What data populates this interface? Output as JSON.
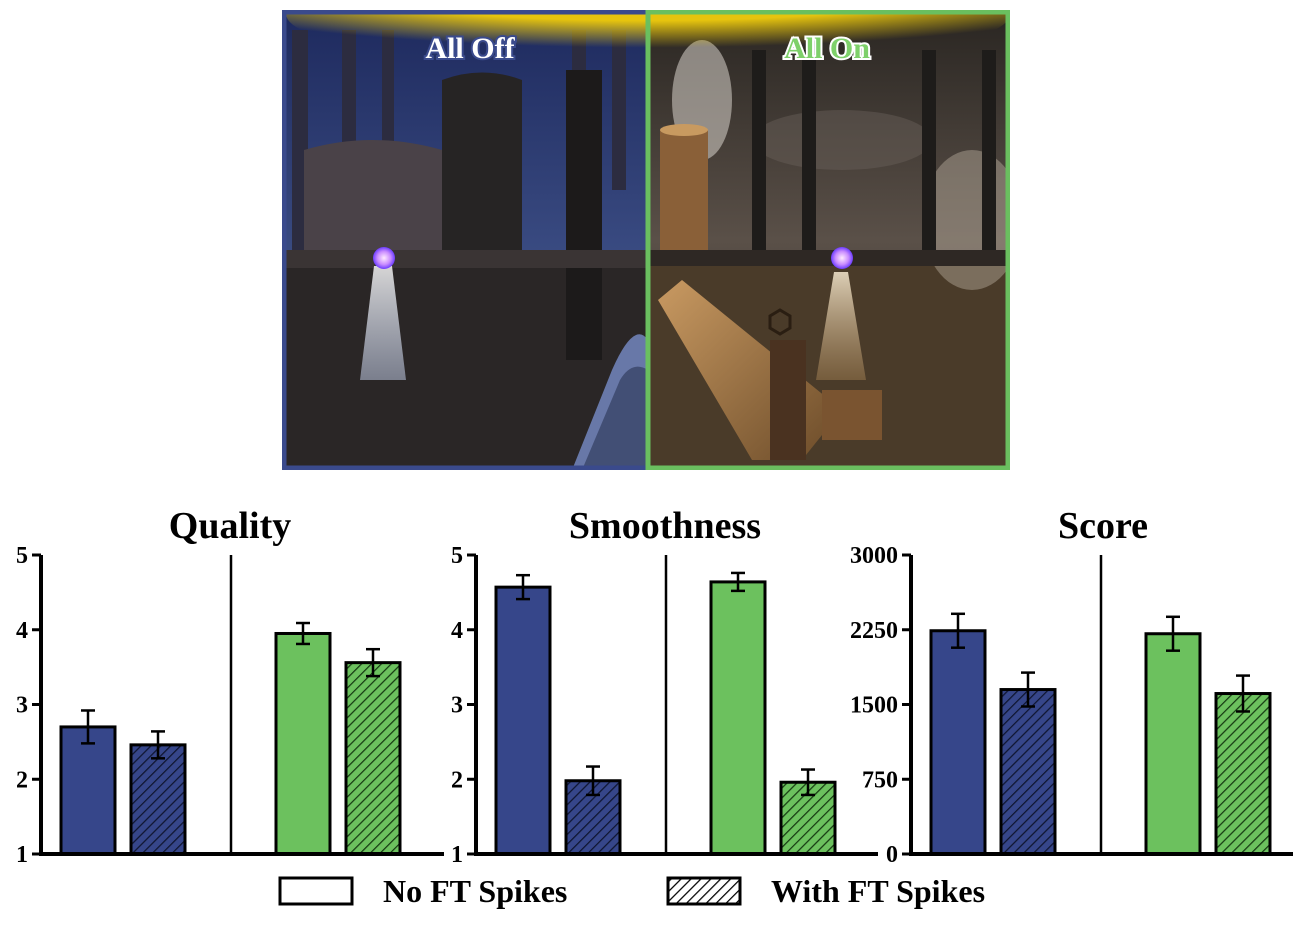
{
  "scene": {
    "left_label": "All Off",
    "right_label": "All On",
    "colors": {
      "off_frame": "#3a4a8c",
      "on_frame": "#6abf5f",
      "banner": "#e8c20a"
    }
  },
  "legend": {
    "no_spikes": "No FT Spikes",
    "with_spikes": "With FT Spikes"
  },
  "colors": {
    "all_off": "#36468a",
    "all_on": "#6cc15e"
  },
  "chart_data": [
    {
      "type": "bar",
      "title": "Quality",
      "ylim": [
        1,
        5
      ],
      "yticks": [
        "1",
        "2",
        "3",
        "4",
        "5"
      ],
      "groups": [
        "All Off",
        "All On"
      ],
      "series": [
        {
          "name": "No FT Spikes",
          "values": [
            2.7,
            3.95
          ],
          "errors": [
            0.22,
            0.14
          ]
        },
        {
          "name": "With FT Spikes",
          "values": [
            2.46,
            3.56
          ],
          "errors": [
            0.18,
            0.18
          ]
        }
      ]
    },
    {
      "type": "bar",
      "title": "Smoothness",
      "ylim": [
        1,
        5
      ],
      "yticks": [
        "1",
        "2",
        "3",
        "4",
        "5"
      ],
      "groups": [
        "All Off",
        "All On"
      ],
      "series": [
        {
          "name": "No FT Spikes",
          "values": [
            4.57,
            4.64
          ],
          "errors": [
            0.16,
            0.12
          ]
        },
        {
          "name": "With FT Spikes",
          "values": [
            1.98,
            1.96
          ],
          "errors": [
            0.19,
            0.17
          ]
        }
      ]
    },
    {
      "type": "bar",
      "title": "Score",
      "ylim": [
        0,
        3000
      ],
      "yticks": [
        "0",
        "750",
        "1500",
        "2250",
        "3000"
      ],
      "groups": [
        "All Off",
        "All On"
      ],
      "series": [
        {
          "name": "No FT Spikes",
          "values": [
            2240,
            2210
          ],
          "errors": [
            170,
            170
          ]
        },
        {
          "name": "With FT Spikes",
          "values": [
            1650,
            1610
          ],
          "errors": [
            170,
            180
          ]
        }
      ]
    }
  ]
}
